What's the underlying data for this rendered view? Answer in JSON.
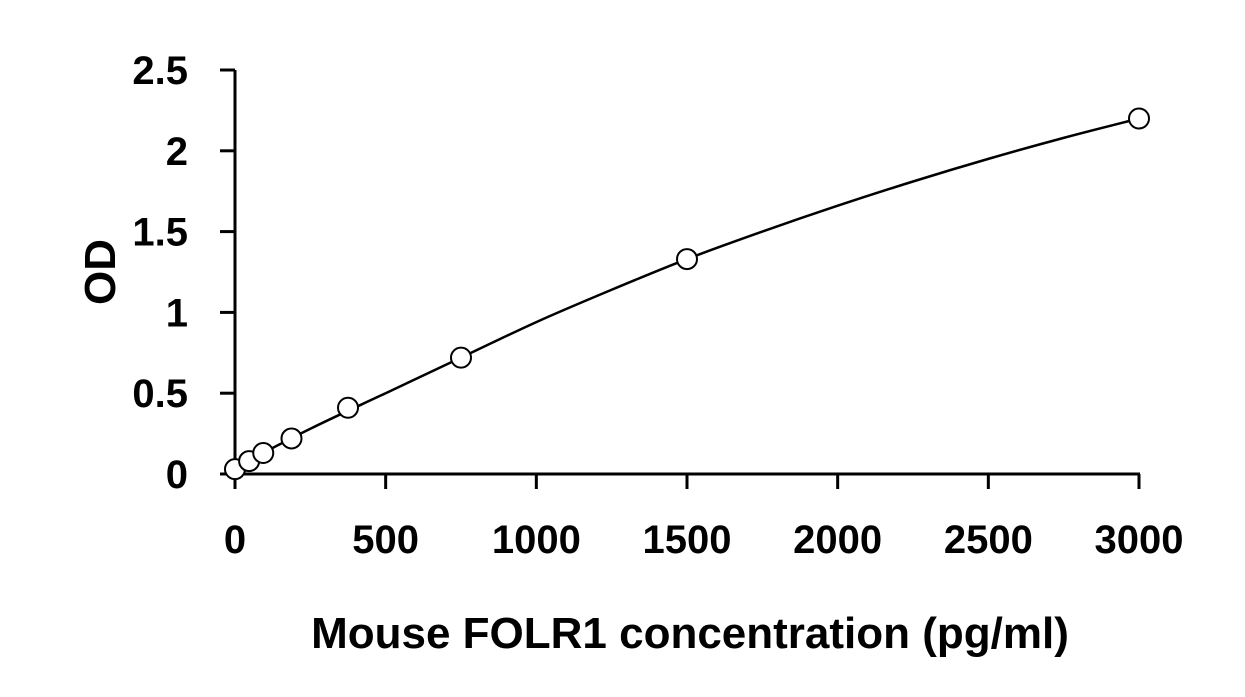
{
  "chart_data": {
    "type": "scatter",
    "title": "",
    "xlabel": "Mouse FOLR1 concentration (pg/ml)",
    "ylabel": "OD",
    "xlim": [
      0,
      3000
    ],
    "ylim": [
      0,
      2.5
    ],
    "x_ticks": [
      0,
      500,
      1000,
      1500,
      2000,
      2500,
      3000
    ],
    "y_ticks": [
      0,
      0.5,
      1,
      1.5,
      2,
      2.5
    ],
    "x_tick_labels": [
      "0",
      "500",
      "1000",
      "1500",
      "2000",
      "2500",
      "3000"
    ],
    "y_tick_labels": [
      "0",
      "0.5",
      "1",
      "1.5",
      "2",
      "2.5"
    ],
    "grid": false,
    "legend": "none",
    "marker": "open-circle",
    "series": [
      {
        "x": [
          0,
          46.88,
          93.75,
          187.5,
          375,
          750,
          1500,
          3000
        ],
        "y": [
          0.03,
          0.08,
          0.13,
          0.22,
          0.41,
          0.72,
          1.33,
          2.2
        ]
      }
    ],
    "fit_curve": {
      "type": "smooth",
      "x": [
        0,
        250,
        500,
        750,
        1000,
        1250,
        1500,
        1750,
        2000,
        2250,
        2500,
        2750,
        3000
      ],
      "y": [
        0.04,
        0.28,
        0.5,
        0.72,
        0.94,
        1.14,
        1.33,
        1.5,
        1.66,
        1.81,
        1.95,
        2.08,
        2.2
      ]
    },
    "colors": {
      "line": "#000000",
      "marker_fill": "#ffffff",
      "axis": "#000000"
    }
  }
}
